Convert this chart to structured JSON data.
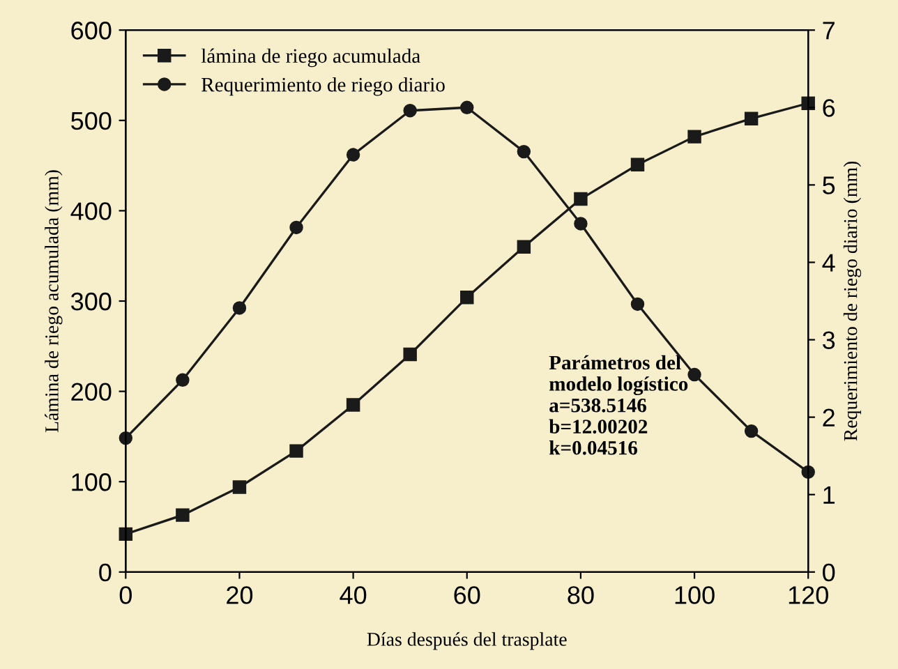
{
  "chart_data": {
    "type": "line",
    "xlabel": "Días después del trasplate",
    "ylabel": "Lámina de riego acumulada (mm)",
    "y2label": "Requerimiento de riego diario (mm)",
    "x": [
      0,
      10,
      20,
      30,
      40,
      50,
      60,
      70,
      80,
      90,
      100,
      110,
      120
    ],
    "series": [
      {
        "name": "lámina de riego acumulada",
        "color": "#1a1a1a",
        "marker": "square",
        "values": [
          42,
          63,
          94,
          134,
          185,
          241,
          304,
          360,
          413,
          451,
          482,
          502,
          519
        ]
      },
      {
        "name": "Requerimiento de riego diario",
        "color": "#1a1a1a",
        "marker": "circle",
        "axis": "y2",
        "values": [
          1.73,
          2.48,
          3.41,
          4.45,
          5.39,
          5.96,
          6.0,
          5.43,
          4.5,
          3.46,
          2.55,
          1.82,
          1.29
        ]
      }
    ],
    "xlim": [
      0,
      120
    ],
    "xticks": [
      0,
      20,
      40,
      60,
      80,
      100,
      120
    ],
    "ylim": [
      0,
      600
    ],
    "yticks": [
      0,
      100,
      200,
      300,
      400,
      500,
      600
    ],
    "y2lim": [
      0,
      7
    ],
    "y2ticks": [
      0,
      1,
      2,
      3,
      4,
      5,
      6,
      7
    ],
    "annotations": [
      "Parámetros del\nmodelo logístico\na=538.5146\nb=12.00202\nk=0.04516"
    ],
    "legend": "top left",
    "grid": false,
    "line_style": "solid"
  }
}
